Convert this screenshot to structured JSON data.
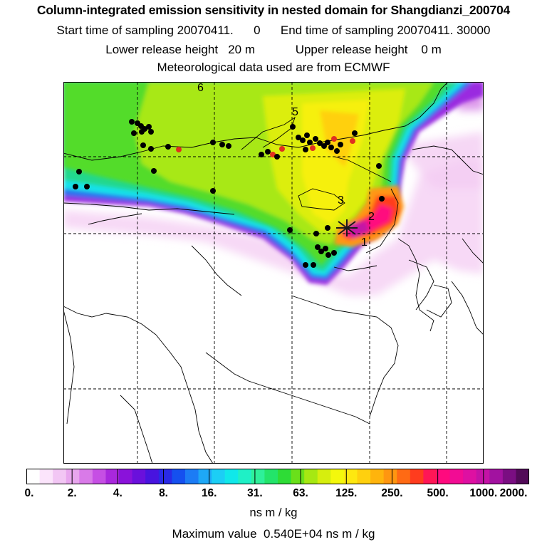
{
  "header": {
    "title": "Column-integrated emission sensitivity in nested domain for Shangdianzi_200704",
    "line2": "Start time of sampling 20070411.      0      End time of sampling 20070411. 30000",
    "line3": "Lower release height   20 m            Upper release height    0 m",
    "line4": "Meteorological data used are from ECMWF"
  },
  "map": {
    "trajectory_labels": [
      "1",
      "2",
      "3",
      "5",
      "6"
    ],
    "receptor_marker": "station-star"
  },
  "colorbar": {
    "colors": [
      "#ffffff",
      "#fbe4fb",
      "#f2c6f4",
      "#e8a6ee",
      "#d97ae8",
      "#c64fe4",
      "#a928dd",
      "#8a12da",
      "#6a10dc",
      "#4814df",
      "#2a2ae6",
      "#1550ef",
      "#1c7cf5",
      "#1ea8f7",
      "#1ccef5",
      "#10e8ea",
      "#1ff0c6",
      "#2ef09a",
      "#23e46a",
      "#2edc36",
      "#6ae01a",
      "#a6e812",
      "#d6ee0e",
      "#f4f80c",
      "#fee810",
      "#ffd00e",
      "#ffb40c",
      "#ff9610",
      "#ff6a14",
      "#ff3c1e",
      "#ff1656",
      "#ff0a7e",
      "#f20c94",
      "#de10a2",
      "#c412a6",
      "#a212a0",
      "#7a0e82",
      "#520a58"
    ],
    "tick_labels": [
      "0.",
      "2.",
      "4.",
      "8.",
      "16.",
      "31.",
      "63.",
      "125.",
      "250.",
      "500.",
      "1000.",
      "2000."
    ],
    "unit": "ns m / kg"
  },
  "footer": {
    "max_value": "Maximum value  0.540E+04 ns m / kg"
  }
}
